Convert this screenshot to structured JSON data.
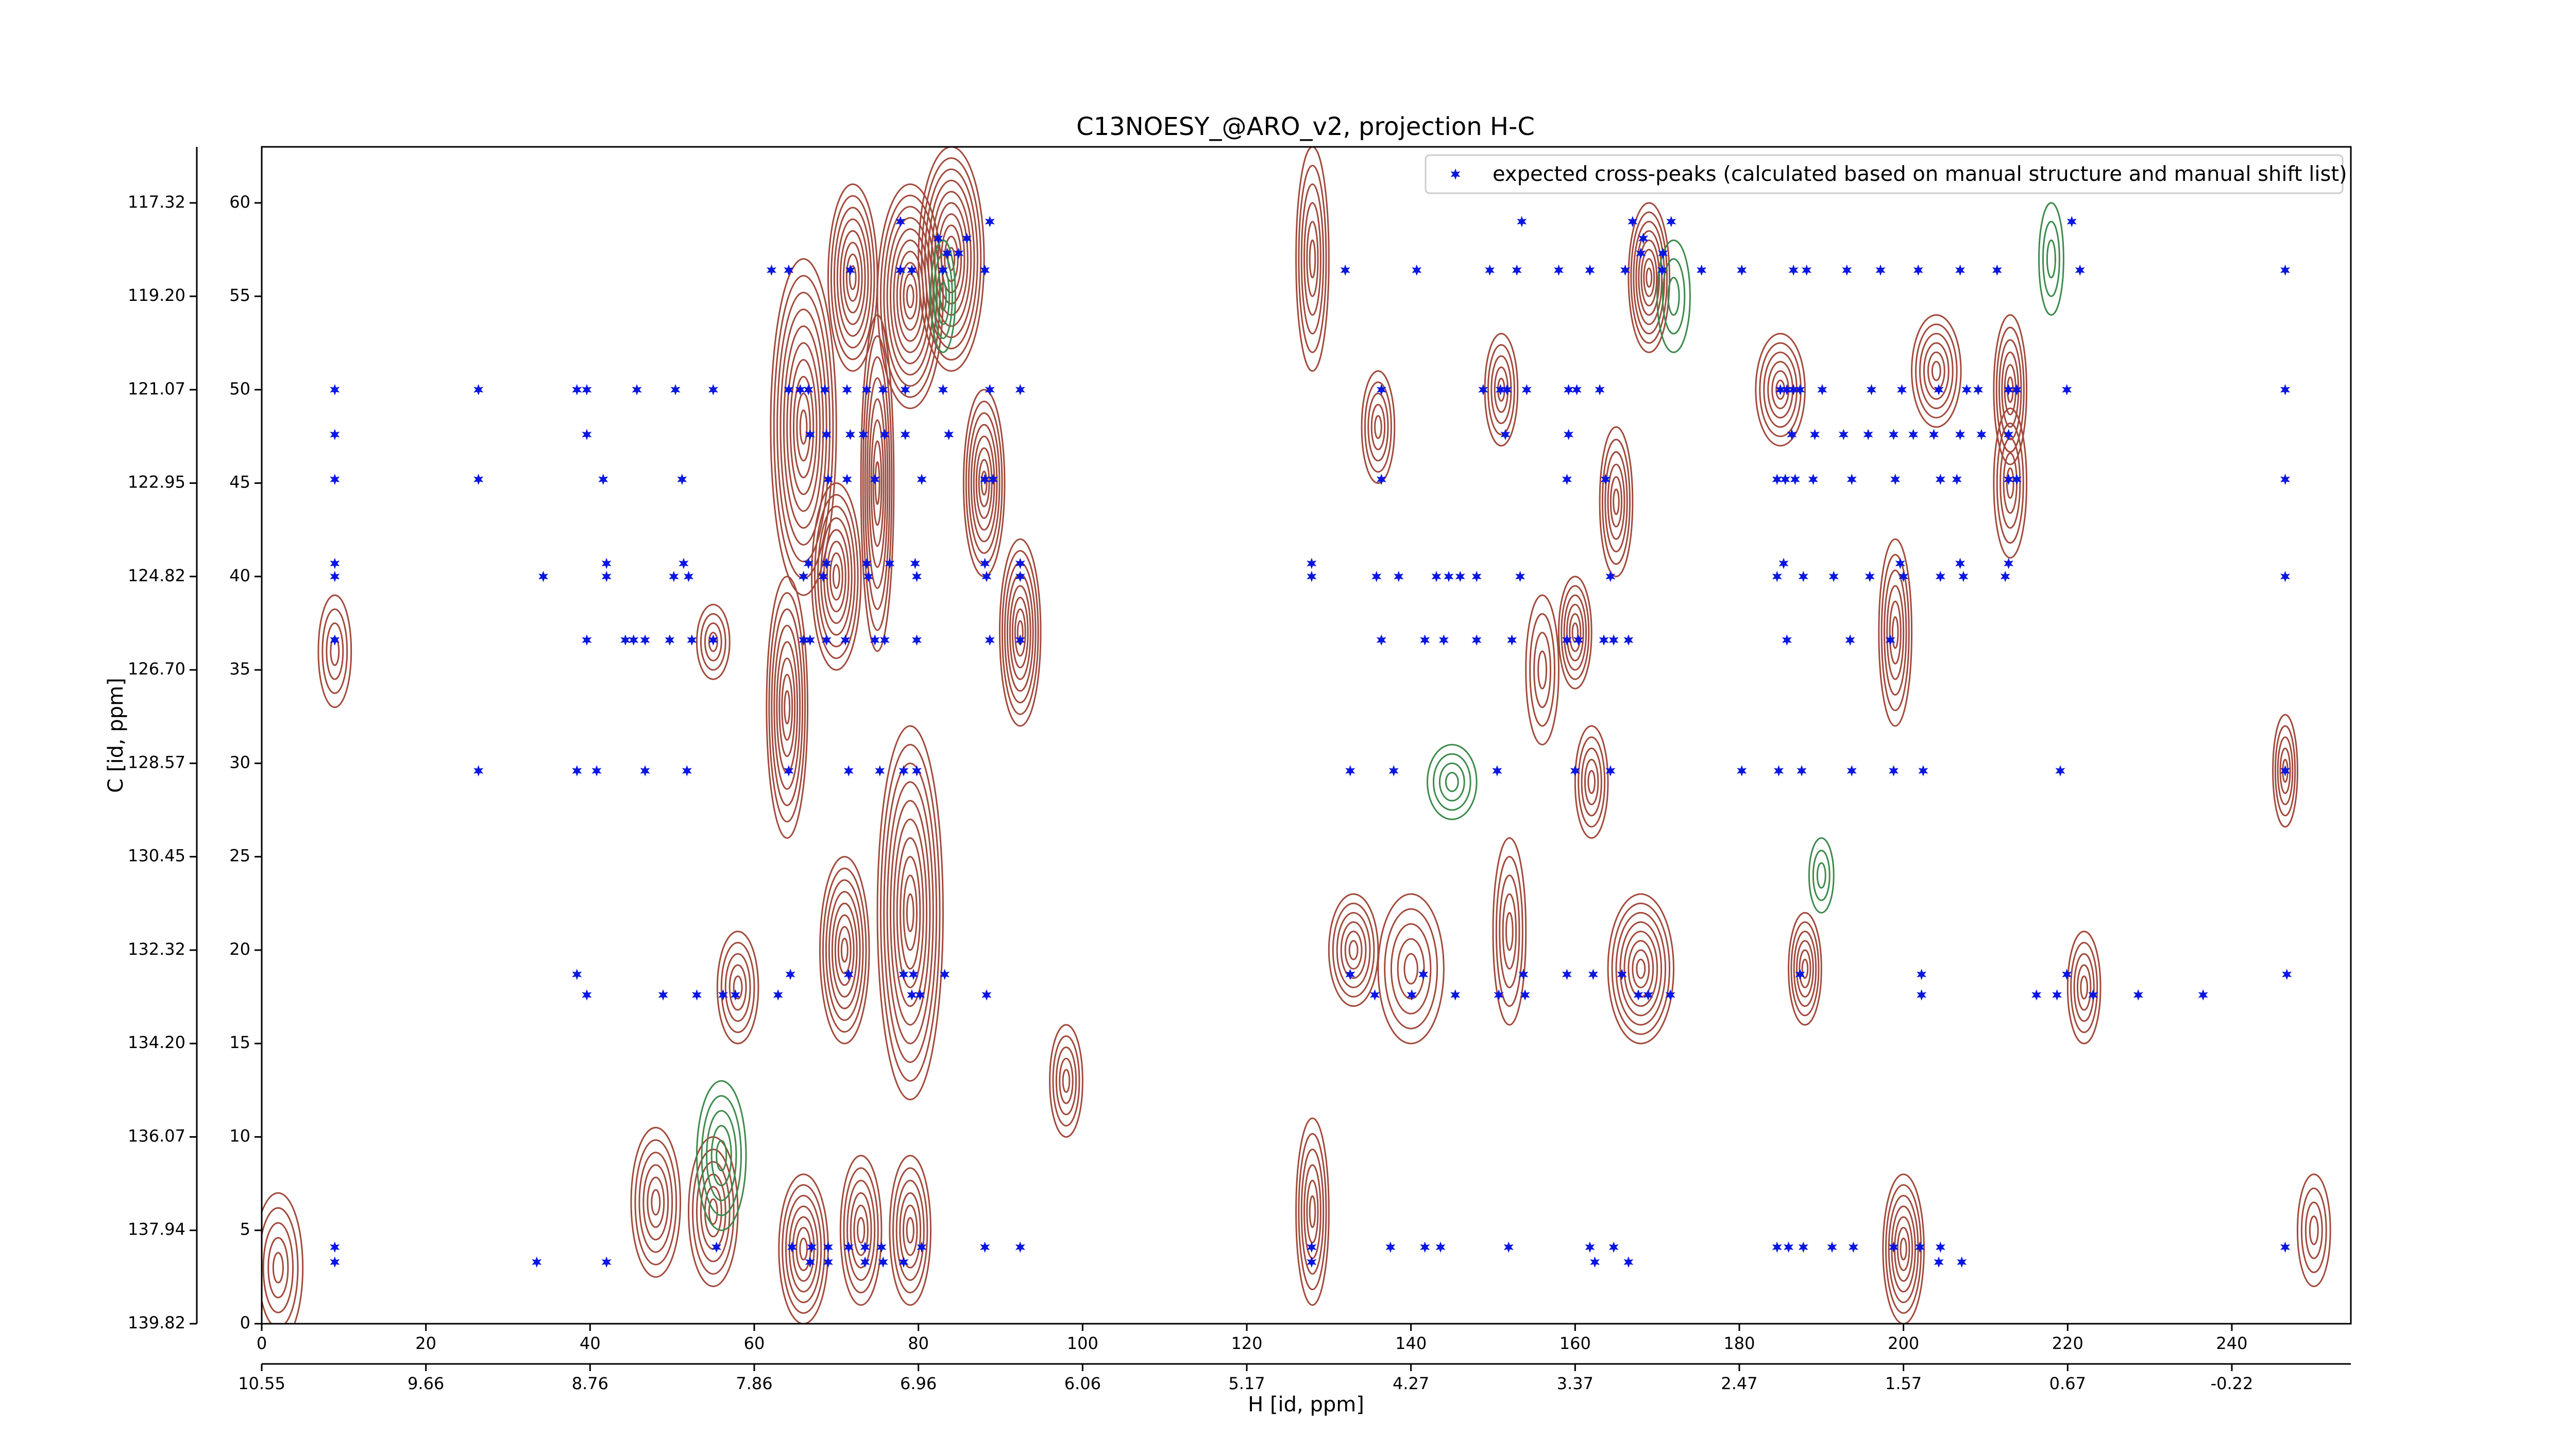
{
  "chart_data": {
    "type": "scatter",
    "title": "C13NOESY_@ARO_v2, projection H-C",
    "legend_label": "expected cross-peaks (calculated based on manual structure and manual shift list)",
    "legend_position": "upper right",
    "xlabel": "H [id, ppm]",
    "ylabel": "C [id, ppm]",
    "color": "#0a16e0",
    "xlim": [
      0,
      254.5
    ],
    "ylim": [
      0,
      63
    ],
    "xticks": [
      0,
      20,
      40,
      60,
      80,
      100,
      120,
      140,
      160,
      180,
      200,
      220,
      240
    ],
    "yticks": [
      0,
      5,
      10,
      15,
      20,
      25,
      30,
      35,
      40,
      45,
      50,
      55,
      60
    ],
    "x2ticks": [
      {
        "value": 0,
        "label": "10.55"
      },
      {
        "value": 20,
        "label": "9.66"
      },
      {
        "value": 40,
        "label": "8.76"
      },
      {
        "value": 60,
        "label": "7.86"
      },
      {
        "value": 80,
        "label": "6.96"
      },
      {
        "value": 100,
        "label": "6.06"
      },
      {
        "value": 120,
        "label": "5.17"
      },
      {
        "value": 140,
        "label": "4.27"
      },
      {
        "value": 160,
        "label": "3.37"
      },
      {
        "value": 180,
        "label": "2.47"
      },
      {
        "value": 200,
        "label": "1.57"
      },
      {
        "value": 220,
        "label": "0.67"
      },
      {
        "value": 240,
        "label": "-0.22"
      }
    ],
    "y2ticks": [
      {
        "value": 0,
        "label": "139.82"
      },
      {
        "value": 5,
        "label": "137.94"
      },
      {
        "value": 10,
        "label": "136.07"
      },
      {
        "value": 15,
        "label": "134.20"
      },
      {
        "value": 20,
        "label": "132.32"
      },
      {
        "value": 25,
        "label": "130.45"
      },
      {
        "value": 30,
        "label": "128.57"
      },
      {
        "value": 35,
        "label": "126.70"
      },
      {
        "value": 40,
        "label": "124.82"
      },
      {
        "value": 45,
        "label": "122.95"
      },
      {
        "value": 50,
        "label": "121.07"
      },
      {
        "value": 55,
        "label": "119.20"
      },
      {
        "value": 60,
        "label": "117.32"
      }
    ],
    "x": [
      77.8,
      88.7,
      153.5,
      167.0,
      171.7,
      220.5,
      82.4,
      85.9,
      168.3,
      83.5,
      84.9,
      168.0,
      170.7,
      62.1,
      64.2,
      71.7,
      77.8,
      79.2,
      83.0,
      88.1,
      132.0,
      140.7,
      149.6,
      152.9,
      158.0,
      161.8,
      166.1,
      170.6,
      175.4,
      180.3,
      186.6,
      188.2,
      193.1,
      197.2,
      201.8,
      206.9,
      211.4,
      221.5,
      246.5,
      8.9,
      26.4,
      38.4,
      39.6,
      45.7,
      50.4,
      55.0,
      64.2,
      65.6,
      66.6,
      68.6,
      71.3,
      73.7,
      75.7,
      78.4,
      83.0,
      88.7,
      92.4,
      136.4,
      148.8,
      150.9,
      151.7,
      154.1,
      159.2,
      160.2,
      163.0,
      185.0,
      185.8,
      186.6,
      187.4,
      190.1,
      196.1,
      199.8,
      204.3,
      207.7,
      209.1,
      212.8,
      213.8,
      219.9,
      246.5,
      8.9,
      39.6,
      66.8,
      68.8,
      71.7,
      73.3,
      75.9,
      78.4,
      83.7,
      151.5,
      159.2,
      186.4,
      189.2,
      192.7,
      195.7,
      198.8,
      201.2,
      203.7,
      206.9,
      209.5,
      212.8,
      8.9,
      26.4,
      41.6,
      51.2,
      69.0,
      71.3,
      74.7,
      80.4,
      88.1,
      89.1,
      136.4,
      159.0,
      163.7,
      184.6,
      185.6,
      186.8,
      189.0,
      193.7,
      199.0,
      204.5,
      206.5,
      212.8,
      213.8,
      246.5,
      8.9,
      42.0,
      51.4,
      66.6,
      68.8,
      73.7,
      76.5,
      79.6,
      88.1,
      92.4,
      127.9,
      185.4,
      199.6,
      206.9,
      212.8,
      8.9,
      34.3,
      42.0,
      50.2,
      52.0,
      66.0,
      68.4,
      73.9,
      79.8,
      88.3,
      92.4,
      127.9,
      135.8,
      138.5,
      143.1,
      144.6,
      146.0,
      148.0,
      153.3,
      164.3,
      184.6,
      187.8,
      191.5,
      195.9,
      200.0,
      204.5,
      207.3,
      212.4,
      246.5,
      8.9,
      39.6,
      44.3,
      45.3,
      46.7,
      49.7,
      52.4,
      55.0,
      66.0,
      66.8,
      68.8,
      71.1,
      74.7,
      75.9,
      79.8,
      88.7,
      92.4,
      136.4,
      141.7,
      144.0,
      148.0,
      152.3,
      159.0,
      160.4,
      163.5,
      164.7,
      166.5,
      185.8,
      193.5,
      198.4,
      26.4,
      38.4,
      40.8,
      46.7,
      51.8,
      64.2,
      71.5,
      75.3,
      78.2,
      79.8,
      132.6,
      137.9,
      150.5,
      160.0,
      164.3,
      180.3,
      184.8,
      187.6,
      193.7,
      198.8,
      202.4,
      219.1,
      246.5,
      38.4,
      64.4,
      71.5,
      78.2,
      79.4,
      83.2,
      132.6,
      141.5,
      153.7,
      159.0,
      162.2,
      165.7,
      187.4,
      202.2,
      219.9,
      246.7,
      39.6,
      48.9,
      53.0,
      56.2,
      57.7,
      62.9,
      79.2,
      80.2,
      88.3,
      135.6,
      140.1,
      145.4,
      150.7,
      153.9,
      167.7,
      168.9,
      171.6,
      202.2,
      216.2,
      218.7,
      223.1,
      228.6,
      236.5,
      8.9,
      55.4,
      64.6,
      67.0,
      69.0,
      71.5,
      73.5,
      75.5,
      80.4,
      88.1,
      92.4,
      127.9,
      137.5,
      141.7,
      143.6,
      151.9,
      161.8,
      164.7,
      184.6,
      186.0,
      187.8,
      191.3,
      193.9,
      198.8,
      202.0,
      204.5,
      246.5,
      8.9,
      33.5,
      42.0,
      66.8,
      69.0,
      73.5,
      75.7,
      78.2,
      127.9,
      162.4,
      166.5,
      204.3,
      207.1
    ],
    "y": [
      59.0,
      59.0,
      59.0,
      59.0,
      59.0,
      59.0,
      58.1,
      58.1,
      58.1,
      57.3,
      57.3,
      57.3,
      57.3,
      56.4,
      56.4,
      56.4,
      56.4,
      56.4,
      56.4,
      56.4,
      56.4,
      56.4,
      56.4,
      56.4,
      56.4,
      56.4,
      56.4,
      56.4,
      56.4,
      56.4,
      56.4,
      56.4,
      56.4,
      56.4,
      56.4,
      56.4,
      56.4,
      56.4,
      56.4,
      50,
      50,
      50,
      50,
      50,
      50,
      50,
      50,
      50,
      50,
      50,
      50,
      50,
      50,
      50,
      50,
      50,
      50,
      50,
      50,
      50,
      50,
      50,
      50,
      50,
      50,
      50,
      50,
      50,
      50,
      50,
      50,
      50,
      50,
      50,
      50,
      50,
      50,
      50,
      50,
      47.6,
      47.6,
      47.6,
      47.6,
      47.6,
      47.6,
      47.6,
      47.6,
      47.6,
      47.6,
      47.6,
      47.6,
      47.6,
      47.6,
      47.6,
      47.6,
      47.6,
      47.6,
      47.6,
      47.6,
      47.6,
      45.2,
      45.2,
      45.2,
      45.2,
      45.2,
      45.2,
      45.2,
      45.2,
      45.2,
      45.2,
      45.2,
      45.2,
      45.2,
      45.2,
      45.2,
      45.2,
      45.2,
      45.2,
      45.2,
      45.2,
      45.2,
      45.2,
      45.2,
      45.2,
      40.7,
      40.7,
      40.7,
      40.7,
      40.7,
      40.7,
      40.7,
      40.7,
      40.7,
      40.7,
      40.7,
      40.7,
      40.7,
      40.7,
      40.7,
      40,
      40,
      40,
      40,
      40,
      40,
      40,
      40,
      40,
      40,
      40,
      40,
      40,
      40,
      40,
      40,
      40,
      40,
      40,
      40,
      40,
      40,
      40,
      40,
      40,
      40,
      40,
      40,
      40,
      36.6,
      36.6,
      36.6,
      36.6,
      36.6,
      36.6,
      36.6,
      36.6,
      36.6,
      36.6,
      36.6,
      36.6,
      36.6,
      36.6,
      36.6,
      36.6,
      36.6,
      36.6,
      36.6,
      36.6,
      36.6,
      36.6,
      36.6,
      36.6,
      36.6,
      36.6,
      36.6,
      36.6,
      36.6,
      36.6,
      29.6,
      29.6,
      29.6,
      29.6,
      29.6,
      29.6,
      29.6,
      29.6,
      29.6,
      29.6,
      29.6,
      29.6,
      29.6,
      29.6,
      29.6,
      29.6,
      29.6,
      29.6,
      29.6,
      29.6,
      29.6,
      29.6,
      29.6,
      18.7,
      18.7,
      18.7,
      18.7,
      18.7,
      18.7,
      18.7,
      18.7,
      18.7,
      18.7,
      18.7,
      18.7,
      18.7,
      18.7,
      18.7,
      18.7,
      17.6,
      17.6,
      17.6,
      17.6,
      17.6,
      17.6,
      17.6,
      17.6,
      17.6,
      17.6,
      17.6,
      17.6,
      17.6,
      17.6,
      17.6,
      17.6,
      17.6,
      17.6,
      17.6,
      17.6,
      17.6,
      17.6,
      17.6,
      4.1,
      4.1,
      4.1,
      4.1,
      4.1,
      4.1,
      4.1,
      4.1,
      4.1,
      4.1,
      4.1,
      4.1,
      4.1,
      4.1,
      4.1,
      4.1,
      4.1,
      4.1,
      4.1,
      4.1,
      4.1,
      4.1,
      4.1,
      4.1,
      4.1,
      4.1,
      4.1,
      3.3,
      3.3,
      3.3,
      3.3,
      3.3,
      3.3,
      3.3,
      3.3,
      3.3,
      3.3,
      3.3,
      3.3,
      3.3
    ],
    "contours": {
      "positive_color": "#a24a3c",
      "negative_color": "#3d8a4c",
      "positive_peaks": [
        [
          8.9,
          36,
          2,
          3,
          4
        ],
        [
          55,
          36.5,
          2,
          2,
          4
        ],
        [
          64,
          33,
          2.5,
          7,
          8
        ],
        [
          66,
          48,
          4,
          9,
          10
        ],
        [
          70,
          40,
          3,
          5,
          8
        ],
        [
          72,
          56,
          3,
          5,
          8
        ],
        [
          75,
          45,
          2,
          9,
          8
        ],
        [
          79,
          55,
          4,
          6,
          10
        ],
        [
          84,
          57,
          4,
          6,
          10
        ],
        [
          88,
          45,
          2.5,
          5,
          8
        ],
        [
          92.4,
          37,
          2.5,
          5,
          8
        ],
        [
          79,
          22,
          4,
          10,
          10
        ],
        [
          71,
          20,
          3,
          5,
          8
        ],
        [
          58,
          18,
          2.5,
          3,
          5
        ],
        [
          48,
          6.5,
          3,
          4,
          6
        ],
        [
          55,
          6,
          3,
          4,
          6
        ],
        [
          66,
          4,
          3,
          4,
          7
        ],
        [
          73,
          5,
          2.5,
          4,
          6
        ],
        [
          79,
          5,
          2.5,
          4,
          6
        ],
        [
          98,
          13,
          2,
          3,
          5
        ],
        [
          128,
          6,
          2,
          5,
          6
        ],
        [
          128,
          57,
          2,
          6,
          6
        ],
        [
          136,
          48,
          2,
          3,
          5
        ],
        [
          133,
          20,
          3,
          3,
          6
        ],
        [
          140,
          19,
          4,
          4,
          5
        ],
        [
          151,
          50,
          2,
          3,
          5
        ],
        [
          152,
          21,
          2,
          5,
          5
        ],
        [
          160,
          37,
          2,
          3,
          6
        ],
        [
          165,
          44,
          2,
          4,
          6
        ],
        [
          168,
          19,
          4,
          4,
          8
        ],
        [
          169,
          56,
          2.5,
          4,
          8
        ],
        [
          162,
          29,
          2,
          3,
          5
        ],
        [
          185,
          50,
          3,
          3,
          6
        ],
        [
          188,
          19,
          2,
          3,
          6
        ],
        [
          199,
          37,
          2,
          5,
          6
        ],
        [
          200,
          4,
          2.5,
          4,
          7
        ],
        [
          204,
          51,
          3,
          3,
          6
        ],
        [
          213,
          50,
          2,
          4,
          6
        ],
        [
          213,
          45,
          2,
          4,
          5
        ],
        [
          222,
          18,
          2,
          3,
          5
        ],
        [
          246.5,
          29.6,
          1.5,
          3,
          5
        ],
        [
          2,
          3,
          3,
          4,
          5
        ],
        [
          250,
          5,
          2,
          3,
          4
        ],
        [
          156,
          35,
          2,
          4,
          4
        ]
      ],
      "negative_peaks": [
        [
          56,
          9,
          3,
          4,
          5
        ],
        [
          83,
          55,
          1.5,
          3,
          4
        ],
        [
          172,
          55,
          2,
          3,
          3
        ],
        [
          145,
          29,
          3,
          2,
          4
        ],
        [
          190,
          24,
          1.5,
          2,
          3
        ],
        [
          218,
          57,
          1.5,
          3,
          3
        ]
      ]
    }
  }
}
